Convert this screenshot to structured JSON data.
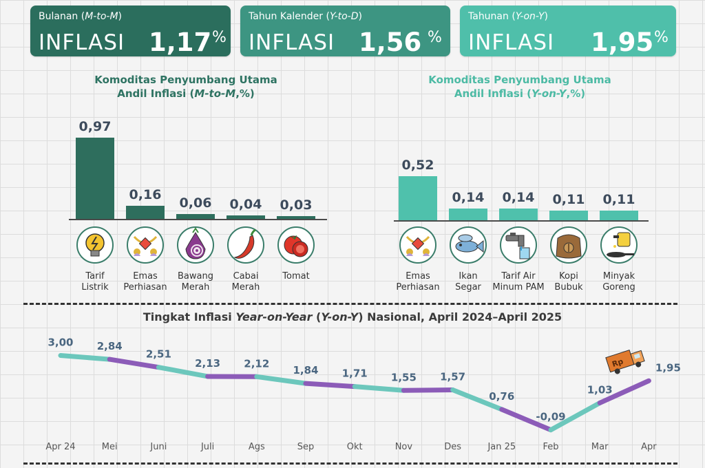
{
  "cards": [
    {
      "prefix": "Bulanan ",
      "period": "M-to-M",
      "word": "INFLASI",
      "value": "1,17",
      "unit": "%"
    },
    {
      "prefix": "Tahun Kalender ",
      "period": "Y-to-D",
      "word": "INFLASI",
      "value": "1,56",
      "unit": "%"
    },
    {
      "prefix": "Tahunan ",
      "period": "Y-on-Y",
      "word": "INFLASI",
      "value": "1,95",
      "unit": "%"
    }
  ],
  "left_title": {
    "line1": "Komoditas Penyumbang Utama",
    "line2_a": "Andil Inflasi (",
    "line2_em": "M-to-M",
    "line2_b": ",%)"
  },
  "right_title": {
    "line1": "Komoditas Penyumbang Utama",
    "line2_a": "Andil Inflasi (",
    "line2_em": "Y-on-Y",
    "line2_b": ",%)"
  },
  "line_title": {
    "a": "Tingkat Inflasi ",
    "em1": "Year-on-Year",
    "b": " (",
    "em2": "Y-on-Y",
    "c": ") Nasional, April 2024–April 2025"
  },
  "chart_data": [
    {
      "type": "bar",
      "title": "Komoditas Penyumbang Utama Andil Inflasi (M-to-M,%)",
      "categories": [
        "Tarif Listrik",
        "Emas Perhiasan",
        "Bawang Merah",
        "Cabai Merah",
        "Tomat"
      ],
      "label_lines": [
        [
          "Tarif",
          "Listrik"
        ],
        [
          "Emas",
          "Perhiasan"
        ],
        [
          "Bawang",
          "Merah"
        ],
        [
          "Cabai",
          "Merah"
        ],
        [
          "Tomat"
        ]
      ],
      "labels": [
        "0,97",
        "0,16",
        "0,06",
        "0,04",
        "0,03"
      ],
      "values": [
        0.97,
        0.16,
        0.06,
        0.04,
        0.03
      ],
      "icons": [
        "lightbulb-icon",
        "jewelry-icon",
        "onion-icon",
        "chili-icon",
        "tomato-icon"
      ],
      "color": "#2e6e5d"
    },
    {
      "type": "bar",
      "title": "Komoditas Penyumbang Utama Andil Inflasi (Y-on-Y,%)",
      "categories": [
        "Emas Perhiasan",
        "Ikan Segar",
        "Tarif Air Minum PAM",
        "Kopi Bubuk",
        "Minyak Goreng"
      ],
      "label_lines": [
        [
          "Emas",
          "Perhiasan"
        ],
        [
          "Ikan",
          "Segar"
        ],
        [
          "Tarif Air",
          "Minum PAM"
        ],
        [
          "Kopi",
          "Bubuk"
        ],
        [
          "Minyak",
          "Goreng"
        ]
      ],
      "labels": [
        "0,52",
        "0,14",
        "0,14",
        "0,11",
        "0,11"
      ],
      "values": [
        0.52,
        0.14,
        0.14,
        0.11,
        0.11
      ],
      "icons": [
        "jewelry-icon",
        "fish-icon",
        "faucet-icon",
        "coffee-bag-icon",
        "cooking-oil-icon"
      ],
      "color": "#4fc1ac"
    },
    {
      "type": "line",
      "title": "Tingkat Inflasi Year-on-Year (Y-on-Y) Nasional, April 2024–April 2025",
      "x": [
        "Apr 24",
        "Mei",
        "Juni",
        "Juli",
        "Ags",
        "Sep",
        "Okt",
        "Nov",
        "Des",
        "Jan 25",
        "Feb",
        "Mar",
        "Apr"
      ],
      "labels": [
        "3,00",
        "2,84",
        "2,51",
        "2,13",
        "2,12",
        "1,84",
        "1,71",
        "1,55",
        "1,57",
        "0,76",
        "-0,09",
        "1,03",
        "1,95"
      ],
      "values": [
        3.0,
        2.84,
        2.51,
        2.13,
        2.12,
        1.84,
        1.71,
        1.55,
        1.57,
        0.76,
        -0.09,
        1.03,
        1.95
      ],
      "colors": [
        "#6cc7bc",
        "#8c5cb8"
      ]
    }
  ],
  "colors": {
    "card1": "#2b6e5d",
    "card2": "#3d9582",
    "card3": "#4fbfaa"
  },
  "truck_text": "Rp"
}
